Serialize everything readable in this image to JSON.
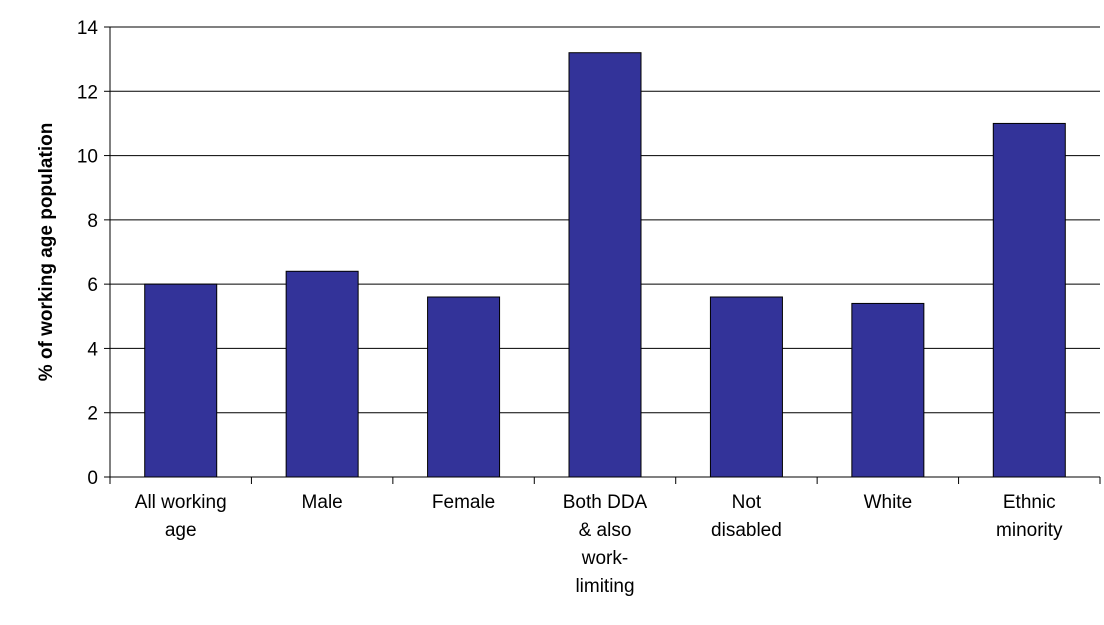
{
  "chart_data": {
    "type": "bar",
    "categories": [
      [
        "All working",
        "age"
      ],
      [
        "Male"
      ],
      [
        "Female"
      ],
      [
        "Both DDA",
        "& also",
        "work-",
        "limiting"
      ],
      [
        "Not",
        "disabled"
      ],
      [
        "White"
      ],
      [
        "Ethnic",
        "minority"
      ]
    ],
    "values": [
      6.0,
      6.4,
      5.6,
      13.2,
      5.6,
      5.4,
      11.0
    ],
    "title": "",
    "xlabel": "",
    "ylabel": "% of working age population",
    "ylim": [
      0,
      14
    ],
    "yticks": [
      0,
      2,
      4,
      6,
      8,
      10,
      12,
      14
    ],
    "grid": true,
    "legend": "none",
    "bar_color": "#333399"
  }
}
